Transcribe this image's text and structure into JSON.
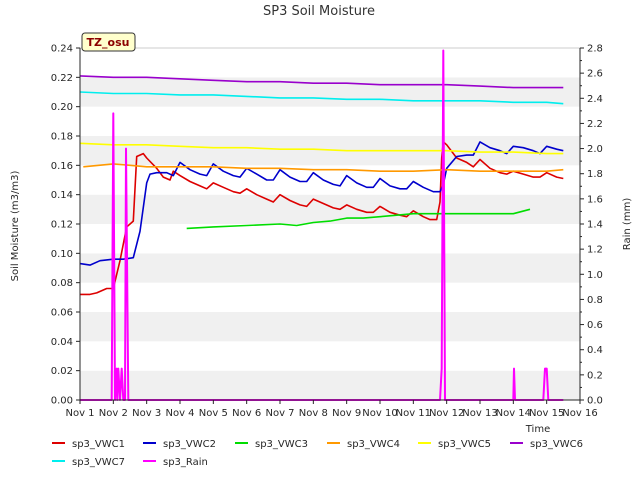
{
  "chart_data": {
    "type": "line",
    "title": "SP3 Soil Moisture",
    "xlabel": "Time",
    "ylabel": "Soil Moisture (m3/m3)",
    "y2label": "Rain (mm)",
    "badge": "TZ_osu",
    "xlim": [
      1,
      16
    ],
    "ylim": [
      0,
      0.24
    ],
    "y2lim": [
      0,
      2.8
    ],
    "x_ticks": [
      1,
      2,
      3,
      4,
      5,
      6,
      7,
      8,
      9,
      10,
      11,
      12,
      13,
      14,
      15,
      16
    ],
    "x_tick_labels": [
      "Nov 1",
      "Nov 2",
      "Nov 3",
      "Nov 4",
      "Nov 5",
      "Nov 6",
      "Nov 7",
      "Nov 8",
      "Nov 9",
      "Nov 10",
      "Nov 11",
      "Nov 12",
      "Nov 13",
      "Nov 14",
      "Nov 15",
      "Nov 16"
    ],
    "y_ticks": [
      0.0,
      0.02,
      0.04,
      0.06,
      0.08,
      0.1,
      0.12,
      0.14,
      0.16,
      0.18,
      0.2,
      0.22,
      0.24
    ],
    "y_tick_labels": [
      "0.00",
      "0.02",
      "0.04",
      "0.06",
      "0.08",
      "0.10",
      "0.12",
      "0.14",
      "0.16",
      "0.18",
      "0.20",
      "0.22",
      "0.24"
    ],
    "y2_ticks": [
      0,
      0.2,
      0.4,
      0.6,
      0.8,
      1.0,
      1.2,
      1.4,
      1.6,
      1.8,
      2.0,
      2.2,
      2.4,
      2.6,
      2.8
    ],
    "y2_tick_labels": [
      "0.0",
      "0.2",
      "0.4",
      "0.6",
      "0.8",
      "1.0",
      "1.2",
      "1.4",
      "1.6",
      "1.8",
      "2.0",
      "2.2",
      "2.4",
      "2.6",
      "2.8"
    ],
    "series": [
      {
        "name": "sp3_VWC1",
        "color": "#dd0000",
        "axis": "left",
        "x": [
          1.0,
          1.3,
          1.5,
          1.8,
          2.0,
          2.2,
          2.4,
          2.6,
          2.7,
          2.9,
          3.0,
          3.3,
          3.5,
          3.7,
          3.8,
          4.0,
          4.3,
          4.6,
          4.8,
          5.0,
          5.3,
          5.6,
          5.8,
          6.0,
          6.3,
          6.6,
          6.8,
          7.0,
          7.3,
          7.6,
          7.8,
          8.0,
          8.3,
          8.6,
          8.8,
          9.0,
          9.3,
          9.6,
          9.8,
          10.0,
          10.3,
          10.6,
          10.8,
          11.0,
          11.3,
          11.5,
          11.7,
          11.8,
          11.85,
          11.9,
          12.0,
          12.3,
          12.6,
          12.8,
          13.0,
          13.3,
          13.6,
          13.8,
          14.0,
          14.3,
          14.6,
          14.8,
          15.0,
          15.3,
          15.5
        ],
        "y": [
          0.072,
          0.072,
          0.073,
          0.076,
          0.076,
          0.095,
          0.118,
          0.122,
          0.166,
          0.168,
          0.165,
          0.158,
          0.152,
          0.15,
          0.156,
          0.153,
          0.149,
          0.146,
          0.144,
          0.148,
          0.145,
          0.142,
          0.141,
          0.144,
          0.14,
          0.137,
          0.135,
          0.14,
          0.136,
          0.133,
          0.132,
          0.137,
          0.134,
          0.131,
          0.13,
          0.133,
          0.13,
          0.128,
          0.128,
          0.132,
          0.128,
          0.126,
          0.125,
          0.129,
          0.125,
          0.123,
          0.123,
          0.135,
          0.165,
          0.176,
          0.174,
          0.165,
          0.162,
          0.159,
          0.164,
          0.158,
          0.155,
          0.154,
          0.156,
          0.154,
          0.152,
          0.152,
          0.155,
          0.152,
          0.151
        ]
      },
      {
        "name": "sp3_VWC2",
        "color": "#0000cc",
        "axis": "left",
        "x": [
          1.0,
          1.3,
          1.6,
          2.0,
          2.3,
          2.6,
          2.8,
          3.0,
          3.1,
          3.3,
          3.6,
          3.8,
          4.0,
          4.3,
          4.6,
          4.8,
          5.0,
          5.3,
          5.6,
          5.8,
          6.0,
          6.3,
          6.6,
          6.8,
          7.0,
          7.3,
          7.6,
          7.8,
          8.0,
          8.3,
          8.6,
          8.8,
          9.0,
          9.3,
          9.6,
          9.8,
          10.0,
          10.3,
          10.6,
          10.8,
          11.0,
          11.3,
          11.6,
          11.8,
          11.9,
          12.0,
          12.3,
          12.6,
          12.8,
          13.0,
          13.3,
          13.6,
          13.8,
          14.0,
          14.3,
          14.6,
          14.8,
          15.0,
          15.3,
          15.5
        ],
        "y": [
          0.093,
          0.092,
          0.095,
          0.096,
          0.096,
          0.097,
          0.115,
          0.148,
          0.154,
          0.155,
          0.155,
          0.153,
          0.162,
          0.157,
          0.154,
          0.153,
          0.161,
          0.156,
          0.153,
          0.152,
          0.158,
          0.154,
          0.15,
          0.15,
          0.157,
          0.152,
          0.149,
          0.149,
          0.155,
          0.15,
          0.147,
          0.146,
          0.153,
          0.148,
          0.145,
          0.145,
          0.151,
          0.146,
          0.144,
          0.144,
          0.149,
          0.145,
          0.142,
          0.142,
          0.147,
          0.158,
          0.166,
          0.167,
          0.167,
          0.176,
          0.172,
          0.17,
          0.168,
          0.173,
          0.172,
          0.17,
          0.168,
          0.173,
          0.171,
          0.17
        ]
      },
      {
        "name": "sp3_VWC3",
        "color": "#00dd00",
        "axis": "left",
        "x": [
          4.2,
          5.0,
          6.0,
          7.0,
          7.5,
          8.0,
          8.5,
          9.0,
          9.5,
          10.0,
          10.5,
          11.0,
          11.5,
          12.0,
          13.0,
          14.0,
          14.5
        ],
        "y": [
          0.117,
          0.118,
          0.119,
          0.12,
          0.119,
          0.121,
          0.122,
          0.124,
          0.124,
          0.125,
          0.126,
          0.127,
          0.127,
          0.127,
          0.127,
          0.127,
          0.13
        ]
      },
      {
        "name": "sp3_VWC4",
        "color": "#ff9900",
        "axis": "left",
        "x": [
          1.1,
          2.0,
          2.5,
          3.0,
          4.0,
          5.0,
          6.0,
          7.0,
          8.0,
          9.0,
          10.0,
          11.0,
          12.0,
          13.0,
          14.0,
          15.0,
          15.5
        ],
        "y": [
          0.159,
          0.161,
          0.16,
          0.159,
          0.159,
          0.159,
          0.158,
          0.158,
          0.157,
          0.157,
          0.156,
          0.156,
          0.157,
          0.156,
          0.156,
          0.156,
          0.157
        ]
      },
      {
        "name": "sp3_VWC5",
        "color": "#ffff00",
        "axis": "left",
        "x": [
          1.0,
          2.0,
          3.0,
          4.0,
          5.0,
          6.0,
          7.0,
          8.0,
          9.0,
          10.0,
          11.0,
          12.0,
          13.0,
          14.0,
          15.0,
          15.5
        ],
        "y": [
          0.175,
          0.174,
          0.174,
          0.173,
          0.172,
          0.172,
          0.171,
          0.171,
          0.17,
          0.17,
          0.17,
          0.17,
          0.169,
          0.169,
          0.168,
          0.168
        ]
      },
      {
        "name": "sp3_VWC6",
        "color": "#9900cc",
        "axis": "left",
        "x": [
          1.0,
          2.0,
          3.0,
          4.0,
          5.0,
          6.0,
          7.0,
          8.0,
          9.0,
          10.0,
          11.0,
          12.0,
          13.0,
          14.0,
          15.0,
          15.5
        ],
        "y": [
          0.221,
          0.22,
          0.22,
          0.219,
          0.218,
          0.217,
          0.217,
          0.216,
          0.216,
          0.215,
          0.215,
          0.215,
          0.214,
          0.213,
          0.213,
          0.213
        ]
      },
      {
        "name": "sp3_VWC7",
        "color": "#00eeee",
        "axis": "left",
        "x": [
          1.0,
          2.0,
          3.0,
          4.0,
          5.0,
          6.0,
          7.0,
          8.0,
          9.0,
          10.0,
          11.0,
          12.0,
          13.0,
          14.0,
          15.0,
          15.5
        ],
        "y": [
          0.21,
          0.209,
          0.209,
          0.208,
          0.208,
          0.207,
          0.206,
          0.206,
          0.205,
          0.205,
          0.204,
          0.204,
          0.204,
          0.203,
          0.203,
          0.202
        ]
      },
      {
        "name": "sp3_Rain",
        "color": "#ff00ff",
        "axis": "right",
        "x": [
          1.0,
          1.95,
          2.0,
          2.05,
          2.1,
          2.12,
          2.15,
          2.2,
          2.25,
          2.3,
          2.35,
          2.38,
          2.45,
          2.5,
          2.55,
          11.8,
          11.85,
          11.9,
          11.95,
          12.0,
          14.0,
          14.02,
          14.05,
          14.9,
          14.95,
          15.0,
          15.05,
          15.5
        ],
        "y": [
          0,
          0,
          2.28,
          0,
          0.25,
          0,
          0.25,
          0,
          0.25,
          0,
          0,
          2.0,
          0,
          0,
          0,
          0,
          0.25,
          2.78,
          0,
          0,
          0,
          0.25,
          0,
          0,
          0.25,
          0.25,
          0,
          0
        ]
      }
    ],
    "legend_position": "bottom"
  }
}
